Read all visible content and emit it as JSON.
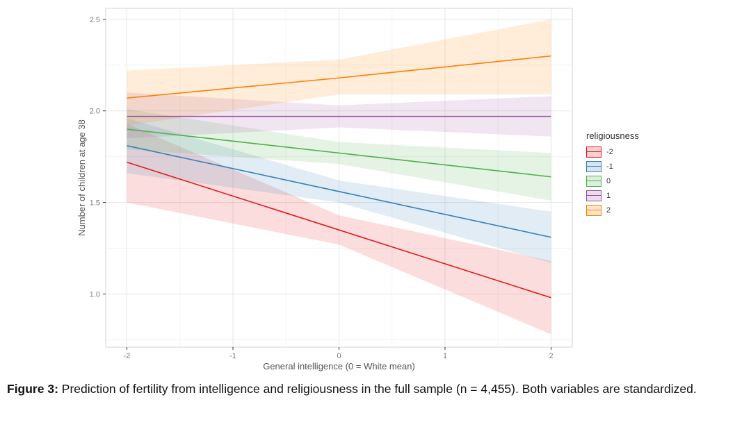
{
  "figure": {
    "caption_label": "Figure 3:",
    "caption_text": "Prediction of fertility from intelligence and religiousness in the full sample (n = 4,455). Both variables are standardized."
  },
  "chart_data": {
    "type": "line",
    "title": "",
    "xlabel": "General intelligence (0 = White mean)",
    "ylabel": "Number of children at age 38",
    "legend_title": "religiousness",
    "legend_position": "right",
    "grid": true,
    "xlim": [
      -2.2,
      2.2
    ],
    "ylim": [
      0.71,
      2.56
    ],
    "xticks": [
      -2,
      -1,
      0,
      1,
      2
    ],
    "xtick_labels": [
      "-2",
      "-1",
      "0",
      "1",
      "2"
    ],
    "yticks": [
      1.0,
      1.5,
      2.0,
      2.5
    ],
    "ytick_labels": [
      "1.0",
      "1.5",
      "2.0",
      "2.5"
    ],
    "x": [
      -2,
      0,
      2
    ],
    "series": [
      {
        "name": "-2",
        "color": "#E41A1C",
        "y": [
          1.72,
          1.35,
          0.98
        ],
        "lower": [
          1.5,
          1.27,
          0.78
        ],
        "upper": [
          1.93,
          1.43,
          1.18
        ]
      },
      {
        "name": "-1",
        "color": "#377EB8",
        "y": [
          1.81,
          1.56,
          1.31
        ],
        "lower": [
          1.66,
          1.5,
          1.17
        ],
        "upper": [
          1.96,
          1.62,
          1.45
        ]
      },
      {
        "name": "0",
        "color": "#4DAF4A",
        "y": [
          1.9,
          1.77,
          1.64
        ],
        "lower": [
          1.79,
          1.71,
          1.51
        ],
        "upper": [
          2.01,
          1.83,
          1.77
        ]
      },
      {
        "name": "1",
        "color": "#984EA3",
        "y": [
          1.97,
          1.97,
          1.97
        ],
        "lower": [
          1.85,
          1.91,
          1.86
        ],
        "upper": [
          2.1,
          2.03,
          2.08
        ]
      },
      {
        "name": "2",
        "color": "#FF7F00",
        "y": [
          2.07,
          2.18,
          2.3
        ],
        "lower": [
          1.92,
          2.09,
          2.09
        ],
        "upper": [
          2.22,
          2.28,
          2.5
        ]
      }
    ]
  }
}
